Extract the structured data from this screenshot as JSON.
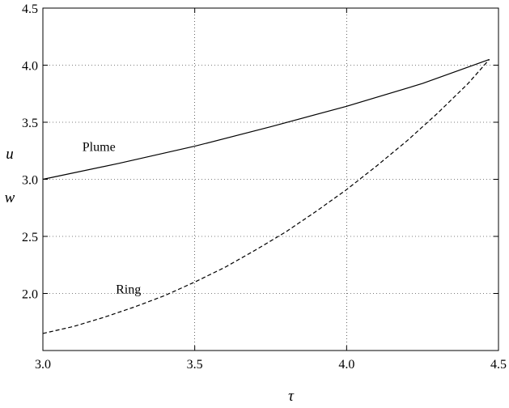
{
  "chart_data": {
    "type": "line",
    "title": "",
    "xlabel": "τ",
    "ylabel_lines": [
      "u",
      "w"
    ],
    "xlim": [
      3.0,
      4.5
    ],
    "ylim": [
      1.5,
      4.5
    ],
    "xticks": [
      3.0,
      3.5,
      4.0,
      4.5
    ],
    "xtick_labels": [
      "3.0",
      "3.5",
      "4.0",
      "4.5"
    ],
    "yticks": [
      2.0,
      2.5,
      3.0,
      3.5,
      4.0,
      4.5
    ],
    "ytick_labels": [
      "2.0",
      "2.5",
      "3.0",
      "3.5",
      "4.0",
      "4.5"
    ],
    "grid": true,
    "series": [
      {
        "name": "Plume",
        "style": "solid",
        "color": "#000000",
        "x": [
          3.0,
          3.25,
          3.5,
          3.75,
          4.0,
          4.25,
          4.47
        ],
        "y": [
          3.0,
          3.14,
          3.29,
          3.46,
          3.64,
          3.84,
          4.05
        ]
      },
      {
        "name": "Ring",
        "style": "dashed",
        "color": "#000000",
        "x": [
          3.0,
          3.1,
          3.2,
          3.3,
          3.4,
          3.5,
          3.6,
          3.7,
          3.8,
          3.9,
          4.0,
          4.1,
          4.2,
          4.3,
          4.4,
          4.47
        ],
        "y": [
          1.65,
          1.71,
          1.79,
          1.88,
          1.98,
          2.1,
          2.23,
          2.38,
          2.54,
          2.72,
          2.91,
          3.12,
          3.34,
          3.58,
          3.84,
          4.05
        ]
      }
    ],
    "annotations": [
      {
        "text": "Plume",
        "x": 3.13,
        "y": 3.25
      },
      {
        "text": "Ring",
        "x": 3.24,
        "y": 2.0
      }
    ]
  }
}
